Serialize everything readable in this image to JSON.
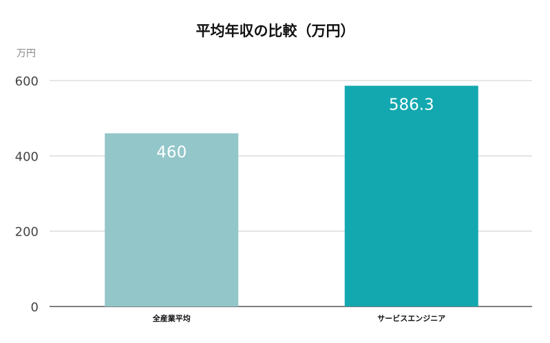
{
  "chart_data": {
    "type": "bar",
    "title": "平均年収の比較（万円）",
    "ylabel": "万円",
    "xlabel": "",
    "categories": [
      "全産業平均",
      "サービスエンジニア"
    ],
    "values": [
      460,
      586.3
    ],
    "data_labels": [
      "460",
      "586.3"
    ],
    "colors": [
      "#93c6c9",
      "#13a8b0"
    ],
    "ylim": [
      0,
      600
    ],
    "yticks": [
      0,
      200,
      400,
      600
    ],
    "grid": true,
    "legend": "none"
  }
}
